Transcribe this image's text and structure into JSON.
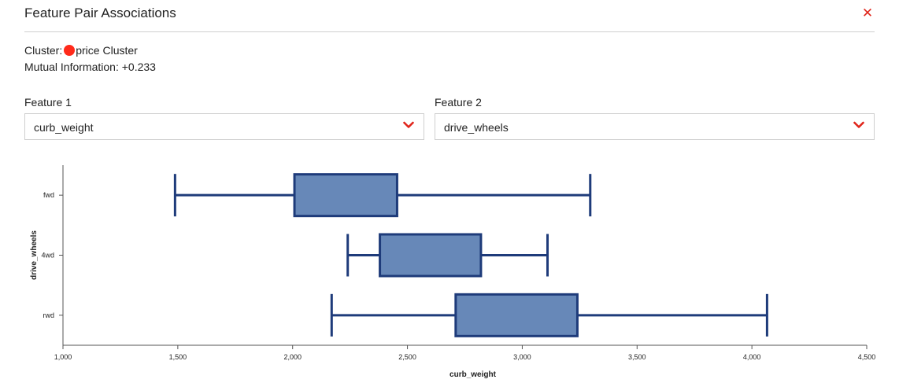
{
  "header": {
    "title": "Feature Pair Associations",
    "close_icon": "close-icon"
  },
  "info": {
    "cluster_label": "Cluster:",
    "cluster_name": "price Cluster",
    "cluster_color": "#ff2a1a",
    "mi_label": "Mutual Information:",
    "mi_value": "+0.233"
  },
  "feature1": {
    "label": "Feature 1",
    "value": "curb_weight"
  },
  "feature2": {
    "label": "Feature 2",
    "value": "drive_wheels"
  },
  "colors": {
    "accent": "#e0251b",
    "box_fill": "#6788b8",
    "box_stroke": "#1e3b7a"
  },
  "chart_data": {
    "type": "boxplot",
    "orientation": "horizontal",
    "xlabel": "curb_weight",
    "ylabel": "drive_wheels",
    "xlim": [
      1000,
      4500
    ],
    "x_ticks": [
      1000,
      1500,
      2000,
      2500,
      3000,
      3500,
      4000,
      4500
    ],
    "x_tick_labels": [
      "1,000",
      "1,500",
      "2,000",
      "2,500",
      "3,000",
      "3,500",
      "4,000",
      "4,500"
    ],
    "categories": [
      "fwd",
      "4wd",
      "rwd"
    ],
    "boxes": [
      {
        "category": "fwd",
        "min": 1488,
        "q1": 2008,
        "q3": 2455,
        "max": 3296
      },
      {
        "category": "4wd",
        "min": 2240,
        "q1": 2380,
        "q3": 2820,
        "max": 3110
      },
      {
        "category": "rwd",
        "min": 2170,
        "q1": 2710,
        "q3": 3240,
        "max": 4066
      }
    ],
    "grid": false,
    "legend": "none"
  }
}
